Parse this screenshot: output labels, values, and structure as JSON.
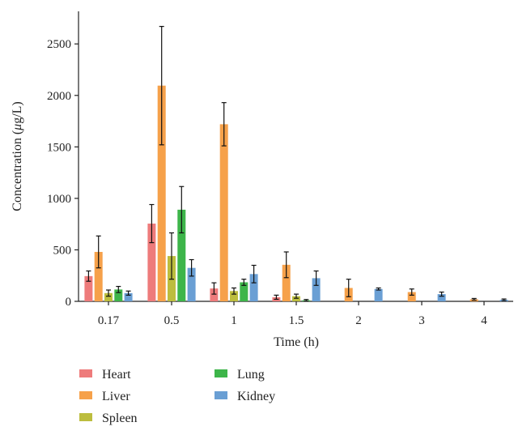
{
  "chart_data": {
    "type": "bar",
    "title": "",
    "xlabel": "Time (h)",
    "ylabel_prefix": "Concentration (",
    "ylabel_mu": "μ",
    "ylabel_suffix": "g/L)",
    "categories": [
      "0.17",
      "0.5",
      "1",
      "1.5",
      "2",
      "3",
      "4"
    ],
    "ylim": [
      0,
      2700
    ],
    "yticks": [
      "0",
      "500",
      "1000",
      "1500",
      "2000",
      "2500"
    ],
    "ytick_values": [
      0,
      500,
      1000,
      1500,
      2000,
      2500
    ],
    "grid": false,
    "legend_position": "bottom-left",
    "series": [
      {
        "name": "Heart",
        "color": "#ee7b7b",
        "values": [
          245,
          755,
          125,
          40,
          null,
          null,
          null
        ],
        "errors": [
          50,
          185,
          55,
          20,
          null,
          null,
          null
        ]
      },
      {
        "name": "Liver",
        "color": "#f6a14a",
        "values": [
          480,
          2095,
          1720,
          355,
          130,
          90,
          20
        ],
        "errors": [
          155,
          575,
          210,
          125,
          85,
          30,
          8
        ]
      },
      {
        "name": "Spleen",
        "color": "#bcbd3e",
        "values": [
          80,
          440,
          100,
          50,
          null,
          null,
          null
        ],
        "errors": [
          30,
          225,
          30,
          20,
          null,
          null,
          null
        ]
      },
      {
        "name": "Lung",
        "color": "#3db54a",
        "values": [
          115,
          890,
          185,
          10,
          null,
          null,
          null
        ],
        "errors": [
          30,
          225,
          30,
          8,
          null,
          null,
          null
        ]
      },
      {
        "name": "Kidney",
        "color": "#6a9fd4",
        "values": [
          80,
          325,
          265,
          225,
          120,
          70,
          15
        ],
        "errors": [
          20,
          80,
          85,
          70,
          10,
          20,
          8
        ]
      }
    ]
  }
}
